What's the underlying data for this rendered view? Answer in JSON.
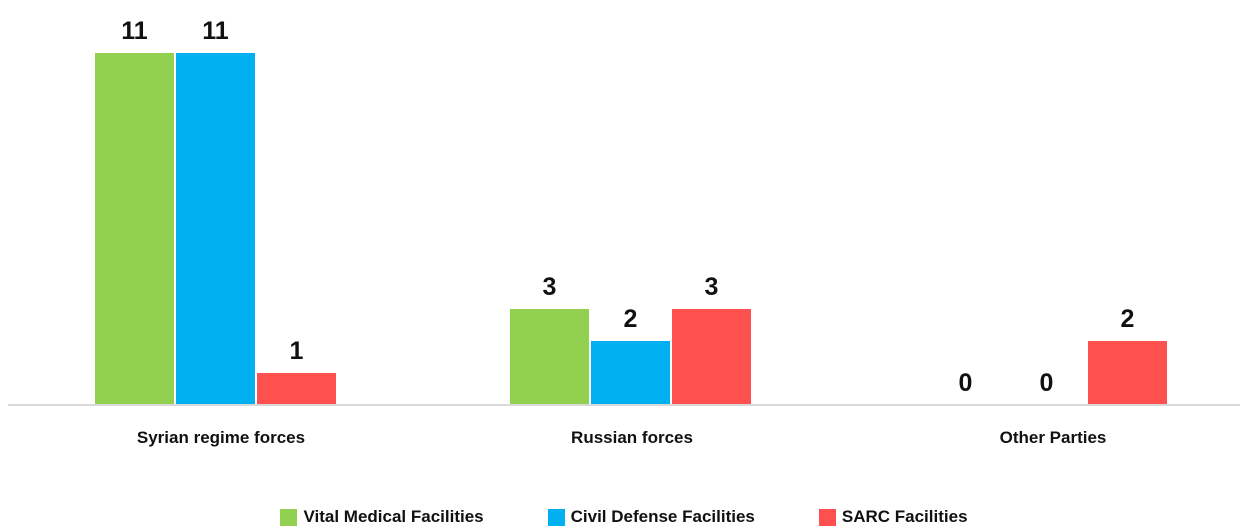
{
  "chart_data": {
    "type": "bar",
    "title": "",
    "xlabel": "",
    "ylabel": "",
    "categories": [
      "Syrian regime forces",
      "Russian forces",
      "Other Parties"
    ],
    "series": [
      {
        "name": "Vital Medical Facilities",
        "values": [
          11,
          3,
          0
        ],
        "color": "#92D050"
      },
      {
        "name": "Civil Defense Facilities",
        "values": [
          11,
          2,
          0
        ],
        "color": "#00B0F0"
      },
      {
        "name": "SARC Facilities",
        "values": [
          1,
          3,
          2
        ],
        "color": "#FF5050"
      }
    ],
    "ylim": [
      0,
      11
    ],
    "grid": false,
    "legend_position": "bottom"
  }
}
